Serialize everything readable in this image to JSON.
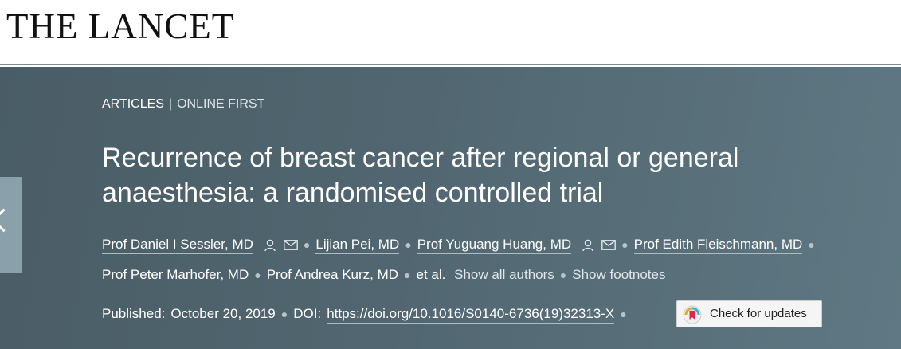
{
  "header": {
    "logo_text": "THE LANCET"
  },
  "breadcrumb": {
    "section": "ARTICLES",
    "separator": "|",
    "status": "ONLINE FIRST"
  },
  "article": {
    "title": "Recurrence of breast cancer after regional or general anaesthesia: a randomised controlled trial",
    "authors": [
      {
        "name": "Prof Daniel I Sessler, MD",
        "has_icons": true
      },
      {
        "name": "Lijian Pei, MD",
        "has_icons": false
      },
      {
        "name": "Prof Yuguang Huang, MD",
        "has_icons": true
      },
      {
        "name": "Prof Edith Fleischmann, MD",
        "has_icons": false
      },
      {
        "name": "Prof Peter Marhofer, MD",
        "has_icons": false
      },
      {
        "name": "Prof Andrea Kurz, MD",
        "has_icons": false
      }
    ],
    "et_al": "et al.",
    "show_all_authors": "Show all authors",
    "show_footnotes": "Show footnotes",
    "published_label": "Published:",
    "published_date": "October 20, 2019",
    "doi_label": "DOI:",
    "doi": "https://doi.org/10.1016/S0140-6736(19)32313-X",
    "check_updates": "Check for updates"
  },
  "icons": {
    "author_profile": "person-icon",
    "author_email": "envelope-icon",
    "side_nav": "chevron-left-icon",
    "check_badge": "crossmark-icon"
  },
  "colors": {
    "banner": "#516670",
    "side_tab": "#8aa0ab",
    "text": "#ffffff"
  }
}
